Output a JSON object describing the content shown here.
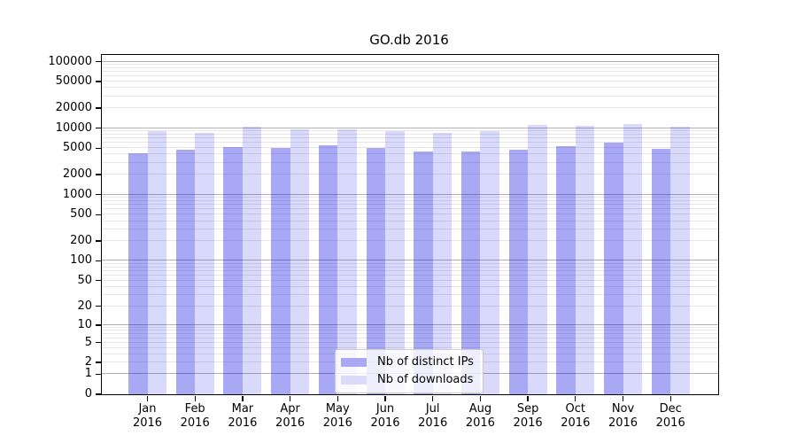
{
  "title": "GO.db 2016",
  "chart_data": {
    "type": "bar",
    "title": "GO.db 2016",
    "xlabel": "",
    "ylabel": "",
    "x_categories": [
      {
        "month": "Jan",
        "year": "2016"
      },
      {
        "month": "Feb",
        "year": "2016"
      },
      {
        "month": "Mar",
        "year": "2016"
      },
      {
        "month": "Apr",
        "year": "2016"
      },
      {
        "month": "May",
        "year": "2016"
      },
      {
        "month": "Jun",
        "year": "2016"
      },
      {
        "month": "Jul",
        "year": "2016"
      },
      {
        "month": "Aug",
        "year": "2016"
      },
      {
        "month": "Sep",
        "year": "2016"
      },
      {
        "month": "Oct",
        "year": "2016"
      },
      {
        "month": "Nov",
        "year": "2016"
      },
      {
        "month": "Dec",
        "year": "2016"
      }
    ],
    "series": [
      {
        "name": "Nb of distinct IPs",
        "color_hex": "#a8a8f5",
        "color_rgba": "rgba(0,0,225,0.34)",
        "values": [
          4200,
          4700,
          5200,
          5100,
          5600,
          5000,
          4400,
          4500,
          4700,
          5400,
          6000,
          4900
        ]
      },
      {
        "name": "Nb of downloads",
        "color_hex": "#dadaf9",
        "color_rgba": "rgba(0,0,225,0.15)",
        "values": [
          9100,
          8400,
          10600,
          9600,
          9700,
          9100,
          8400,
          9000,
          11300,
          10800,
          11400,
          10400
        ]
      }
    ],
    "y_axis": {
      "scale": "log10(value+1)",
      "ticks": [
        100000,
        50000,
        20000,
        10000,
        5000,
        2000,
        1000,
        500,
        200,
        100,
        50,
        20,
        10,
        5,
        2,
        1,
        0
      ],
      "major_gridline_values": [
        1,
        10,
        100,
        1000,
        10000,
        100000
      ],
      "ylim": [
        0,
        124000
      ]
    },
    "grid": true,
    "legend_position": "lower center",
    "colors": {
      "major_grid": "#b3b3b3",
      "minor_grid": "#e7e7e7",
      "spine": "#000000",
      "background": "#ffffff"
    }
  }
}
